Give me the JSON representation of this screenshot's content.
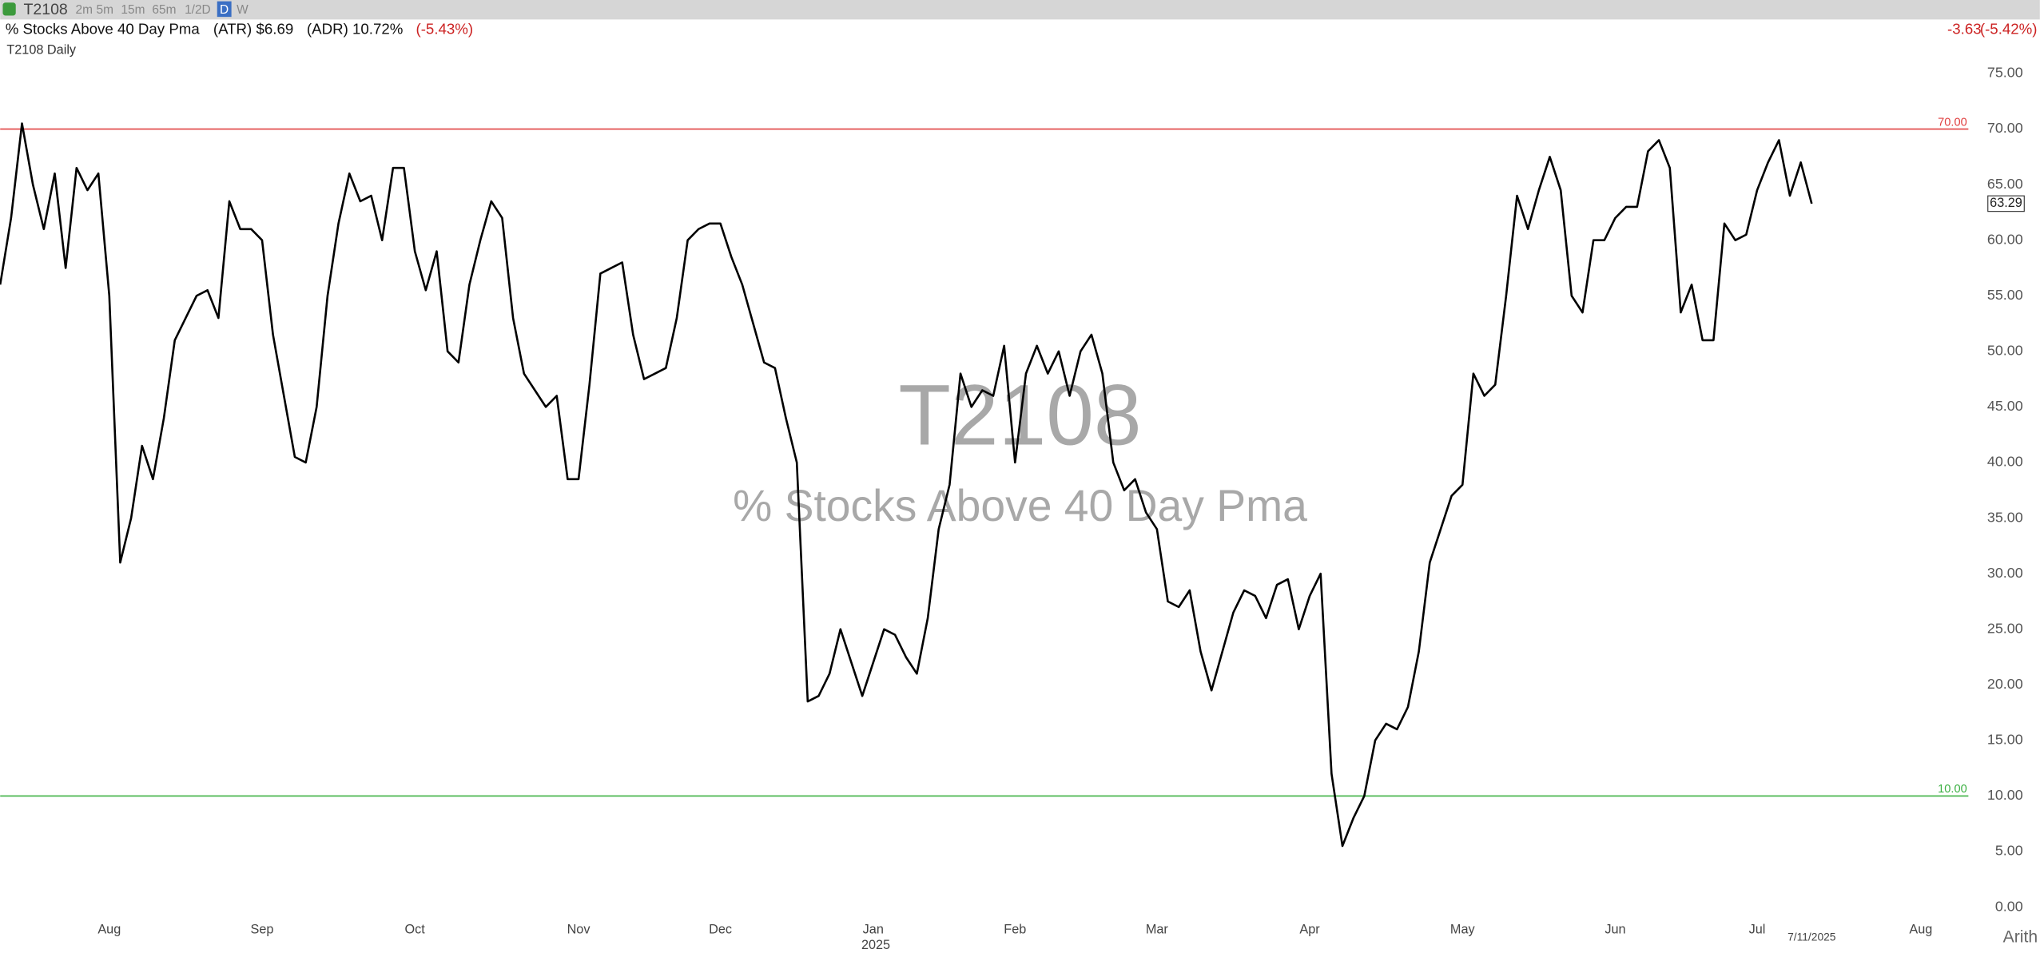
{
  "chart_data": {
    "type": "line",
    "symbol": "T2108",
    "timeframes": [
      "2m",
      "5m",
      "15m",
      "65m",
      "1/2D",
      "D",
      "W"
    ],
    "title": "% Stocks Above 40 Day Pma",
    "atr": "(ATR) $6.69",
    "adr": "(ADR) 10.72%",
    "change_pct": "(-5.43%)",
    "right_change": "-3.63",
    "right_change_pct": "(-5.42%)",
    "pane_label": "T2108 Daily",
    "scale_label": "Arith",
    "year_label": "2025",
    "end_date_label": "7/11/2025",
    "color": "#000000",
    "ylim": [
      -1,
      76
    ],
    "yticks": [
      {
        "value": 0,
        "label": "0.00"
      },
      {
        "value": 5,
        "label": "5.00"
      },
      {
        "value": 10,
        "label": "10.00"
      },
      {
        "value": 15,
        "label": "15.00"
      },
      {
        "value": 20,
        "label": "20.00"
      },
      {
        "value": 25,
        "label": "25.00"
      },
      {
        "value": 30,
        "label": "30.00"
      },
      {
        "value": 35,
        "label": "35.00"
      },
      {
        "value": 40,
        "label": "40.00"
      },
      {
        "value": 45,
        "label": "45.00"
      },
      {
        "value": 50,
        "label": "50.00"
      },
      {
        "value": 55,
        "label": "55.00"
      },
      {
        "value": 60,
        "label": "60.00"
      },
      {
        "value": 65,
        "label": "65.00"
      },
      {
        "value": 70,
        "label": "70.00"
      },
      {
        "value": 75,
        "label": "75.00"
      }
    ],
    "grid": false,
    "ref_lines": [
      {
        "value": 70,
        "label": "70.00",
        "color": "#e04040"
      },
      {
        "value": 10,
        "label": "10.00",
        "color": "#3cb043"
      }
    ],
    "categories": [
      null,
      null,
      null,
      null,
      null,
      null,
      null,
      null,
      null,
      null,
      "Aug",
      null,
      null,
      null,
      null,
      null,
      null,
      null,
      null,
      null,
      null,
      null,
      null,
      null,
      "Sep",
      null,
      null,
      null,
      null,
      null,
      null,
      null,
      null,
      null,
      null,
      null,
      null,
      null,
      "Oct",
      null,
      null,
      null,
      null,
      null,
      null,
      null,
      null,
      null,
      null,
      null,
      null,
      null,
      null,
      "Nov",
      null,
      null,
      null,
      null,
      null,
      null,
      null,
      null,
      null,
      null,
      null,
      null,
      "Dec",
      null,
      null,
      null,
      null,
      null,
      null,
      null,
      null,
      null,
      null,
      null,
      null,
      null,
      "Jan",
      null,
      null,
      null,
      null,
      null,
      null,
      null,
      null,
      null,
      null,
      null,
      null,
      "Feb",
      null,
      null,
      null,
      null,
      null,
      null,
      null,
      null,
      null,
      null,
      null,
      null,
      "Mar",
      null,
      null,
      null,
      null,
      null,
      null,
      null,
      null,
      null,
      null,
      null,
      null,
      null,
      "Apr",
      null,
      null,
      null,
      null,
      null,
      null,
      null,
      null,
      null,
      null,
      null,
      null,
      null,
      "May",
      null,
      null,
      null,
      null,
      null,
      null,
      null,
      null,
      null,
      null,
      null,
      null,
      null,
      "Jun",
      null,
      null,
      null,
      null,
      null,
      null,
      null,
      null,
      null,
      null,
      null,
      null,
      "Jul",
      null,
      null,
      null,
      null,
      null,
      null,
      null,
      null,
      null,
      null,
      null,
      null,
      null,
      null,
      "Aug",
      null,
      null,
      null,
      null
    ],
    "values": [
      56,
      62,
      70.5,
      65,
      61,
      66,
      57.5,
      66.5,
      64.5,
      66,
      55,
      31,
      35,
      41.5,
      38.5,
      44,
      51,
      53,
      55,
      55.5,
      53,
      63.5,
      61,
      61,
      60,
      51.5,
      46,
      40.5,
      40,
      45,
      55,
      61.5,
      66,
      63.5,
      64,
      60,
      66.5,
      66.5,
      59,
      55.5,
      59,
      50,
      49,
      56,
      60,
      63.5,
      62,
      53,
      48,
      46.5,
      45,
      46,
      38.5,
      38.5,
      47,
      57,
      57.5,
      58,
      51.5,
      47.5,
      48,
      48.5,
      53,
      60,
      61,
      61.5,
      61.5,
      58.5,
      56,
      52.5,
      49,
      48.5,
      44,
      40,
      18.5,
      19,
      21,
      25,
      22,
      19,
      22,
      25,
      24.5,
      22.5,
      21,
      26,
      34,
      38,
      48,
      45,
      46.5,
      46,
      50.5,
      40,
      48,
      50.5,
      48,
      50,
      46,
      50,
      51.5,
      48,
      40,
      37.5,
      38.5,
      35.5,
      34,
      27.5,
      27,
      28.5,
      23,
      19.5,
      23,
      26.5,
      28.5,
      28,
      26,
      29,
      29.5,
      25,
      28,
      30,
      12,
      5.5,
      8,
      10,
      15,
      16.5,
      16,
      18,
      23,
      31,
      34,
      37,
      38,
      48,
      46,
      47,
      55,
      64,
      61,
      64.5,
      67.5,
      64.5,
      55,
      53.5,
      60,
      60,
      62,
      63,
      63,
      68,
      69,
      66.5,
      53.5,
      56,
      51,
      51,
      61.5,
      60,
      60.5,
      64.5,
      67,
      69,
      64,
      67,
      63.29,
      null,
      null,
      null,
      null,
      null,
      null,
      null,
      null,
      null,
      null,
      null,
      null,
      null,
      null
    ]
  }
}
